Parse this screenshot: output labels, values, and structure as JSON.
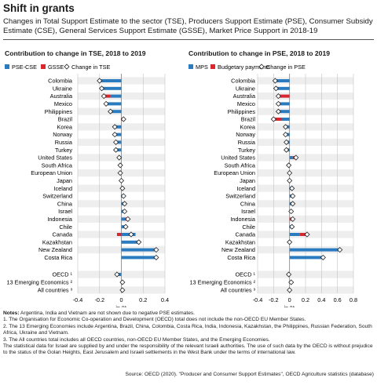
{
  "title": "Shift in grants",
  "subtitle": "Changes in Total Support Estimate to the sector (TSE), Producers Support Estimate (PSE), Consumer Subsidy Estimate (CSE), General Services Support Estimate (GSSE), Market Price Support in 2018-19",
  "colors": {
    "blue": "#2a7bbf",
    "red": "#d8272f",
    "grid": "#c4c4c4",
    "row": "#eeeeee"
  },
  "chart_data": [
    {
      "type": "bar",
      "title": "Contribution to change in TSE, 2018 to 2019",
      "legend": [
        "PSE-CSE",
        "GSSE",
        "Change in TSE"
      ],
      "xlabel": "in %",
      "xlim": [
        -0.4,
        0.4
      ],
      "ticks": [
        "-0.4",
        "-0.2",
        "0",
        "0.2",
        "0.4"
      ],
      "categories": [
        "Colombia",
        "Ukraine",
        "Australia",
        "Mexico",
        "Philippines",
        "Brazil",
        "Korea",
        "Norway",
        "Russia",
        "Turkey",
        "United States",
        "South Africa",
        "European Union",
        "Japan",
        "Iceland",
        "Switzerland",
        "China",
        "Israel",
        "Indonesia",
        "Chile",
        "Canada",
        "Kazakhstan",
        "New Zealand",
        "Costa Rica",
        "OECD ¹",
        "13 Emerging Economics ²",
        "All countries ³"
      ],
      "series": [
        {
          "name": "PSE-CSE",
          "values": [
            -0.2,
            -0.18,
            -0.1,
            -0.14,
            -0.1,
            0.0,
            -0.06,
            -0.06,
            -0.05,
            -0.05,
            -0.03,
            -0.02,
            -0.01,
            0.0,
            0.01,
            0.02,
            0.03,
            0.03,
            0.04,
            0.03,
            0.13,
            0.15,
            0.32,
            0.32,
            -0.04,
            0.0,
            0.01
          ]
        },
        {
          "name": "GSSE",
          "values": [
            0.0,
            0.0,
            -0.06,
            0.0,
            0.0,
            0.02,
            0.0,
            0.0,
            0.0,
            0.0,
            0.0,
            0.0,
            0.0,
            0.0,
            0.0,
            0.0,
            0.0,
            0.0,
            0.02,
            0.01,
            -0.04,
            0.01,
            0.0,
            0.0,
            0.0,
            0.01,
            0.0
          ]
        },
        {
          "name": "Change in TSE",
          "values": [
            -0.2,
            -0.18,
            -0.16,
            -0.14,
            -0.1,
            0.02,
            -0.06,
            -0.06,
            -0.05,
            -0.05,
            -0.02,
            -0.01,
            -0.01,
            0.0,
            0.01,
            0.02,
            0.03,
            0.03,
            0.06,
            0.04,
            0.09,
            0.16,
            0.32,
            0.32,
            -0.04,
            0.01,
            0.01
          ]
        }
      ]
    },
    {
      "type": "bar",
      "title": "Contribution to change in PSE, 2018 to 2019",
      "legend": [
        "MPS",
        "Budgetary payments",
        "Change in PSE"
      ],
      "xlabel": "in %",
      "xlim": [
        -0.4,
        0.8
      ],
      "ticks": [
        "-0.4",
        "-0.2",
        "0",
        "0.2",
        "0.4",
        "0.6",
        "0.8"
      ],
      "categories": [
        "Colombia",
        "Ukraine",
        "Australia",
        "Mexico",
        "Philippines",
        "Brazil",
        "Korea",
        "Norway",
        "Russia",
        "Turkey",
        "United States",
        "South Africa",
        "European Union",
        "Japan",
        "Iceland",
        "Switzerland",
        "China",
        "Israel",
        "Indonesia",
        "Chile",
        "Canada",
        "Kazakhstan",
        "New Zealand",
        "Costa Rica",
        "OECD ¹",
        "13 Emerging Economics ²",
        "All countries ³"
      ],
      "series": [
        {
          "name": "MPS",
          "values": [
            -0.18,
            -0.17,
            0.0,
            -0.12,
            -0.14,
            -0.1,
            -0.05,
            -0.05,
            -0.04,
            -0.02,
            0.04,
            -0.01,
            0.0,
            0.0,
            0.02,
            0.03,
            0.03,
            0.02,
            0.0,
            0.03,
            0.13,
            0.0,
            0.63,
            0.42,
            -0.01,
            0.0,
            0.0
          ]
        },
        {
          "name": "Budgetary payments",
          "values": [
            0.0,
            0.0,
            -0.14,
            -0.02,
            0.0,
            -0.1,
            0.0,
            0.0,
            0.0,
            -0.02,
            0.04,
            0.0,
            0.0,
            0.0,
            0.01,
            0.01,
            0.01,
            0.0,
            0.04,
            0.0,
            0.09,
            0.0,
            0.0,
            0.0,
            0.0,
            0.02,
            0.0
          ]
        },
        {
          "name": "Change in PSE",
          "values": [
            -0.18,
            -0.17,
            -0.14,
            -0.14,
            -0.14,
            -0.2,
            -0.05,
            -0.05,
            -0.04,
            -0.04,
            0.08,
            -0.01,
            0.0,
            0.0,
            0.03,
            0.04,
            0.04,
            0.02,
            0.04,
            0.03,
            0.22,
            0.0,
            0.63,
            0.42,
            -0.01,
            0.02,
            0.0
          ]
        }
      ]
    }
  ],
  "notes": {
    "label": "Notes:",
    "lines": [
      "Argentina, India and Vietnam are not shown due to negative PSE estimates.",
      "1. The Organisation for Economic Co-operation and Development (OECD) total does not include the non-OECD EU Member States.",
      "2. The 13 Emerging Economies include Argentina, Brazil, China, Colombia, Costa Rica, India, Indonesia, Kazakhstan, the Philippines, Russian Federation, South Africa, Ukraine and Vietnam.",
      "3. The All countries total includes all OECD countries, non-OECD EU Member States, and the Emerging Economies.",
      "The statistical data for Israel are supplied by and under the responsibility of the relevant Israeli authorities. The use of such data by the OECD is without prejudice to the status of the Golan Heights, East Jerusalem and Israeli settlements in the West Bank under the terms of international law."
    ]
  },
  "source": "Source: OECD (2020). \"Producer and Consumer Support Estimates\", OECD Agriculture statistics (database)"
}
